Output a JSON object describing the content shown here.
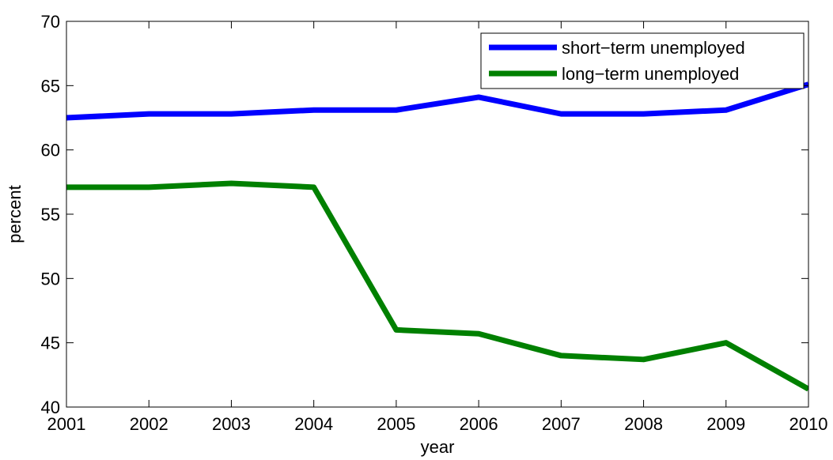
{
  "chart_data": {
    "type": "line",
    "x_label": "year",
    "y_label": "percent",
    "x": [
      2001,
      2002,
      2003,
      2004,
      2005,
      2006,
      2007,
      2008,
      2009,
      2010
    ],
    "series": [
      {
        "name": "short−term unemployed",
        "color": "#0000ff",
        "values": [
          62.5,
          62.8,
          62.8,
          63.1,
          63.1,
          64.1,
          62.8,
          62.8,
          63.1,
          65.1
        ]
      },
      {
        "name": "long−term unemployed",
        "color": "#008000",
        "values": [
          57.1,
          57.1,
          57.4,
          57.1,
          46.0,
          45.7,
          44.0,
          43.7,
          45.0,
          41.4
        ]
      }
    ],
    "xlim": [
      2001,
      2010
    ],
    "xticks": [
      2001,
      2002,
      2003,
      2004,
      2005,
      2006,
      2007,
      2008,
      2009,
      2010
    ],
    "ylim": [
      40,
      70
    ],
    "yticks": [
      40,
      45,
      50,
      55,
      60,
      65,
      70
    ],
    "grid": false,
    "legend_position": "upper-right"
  }
}
